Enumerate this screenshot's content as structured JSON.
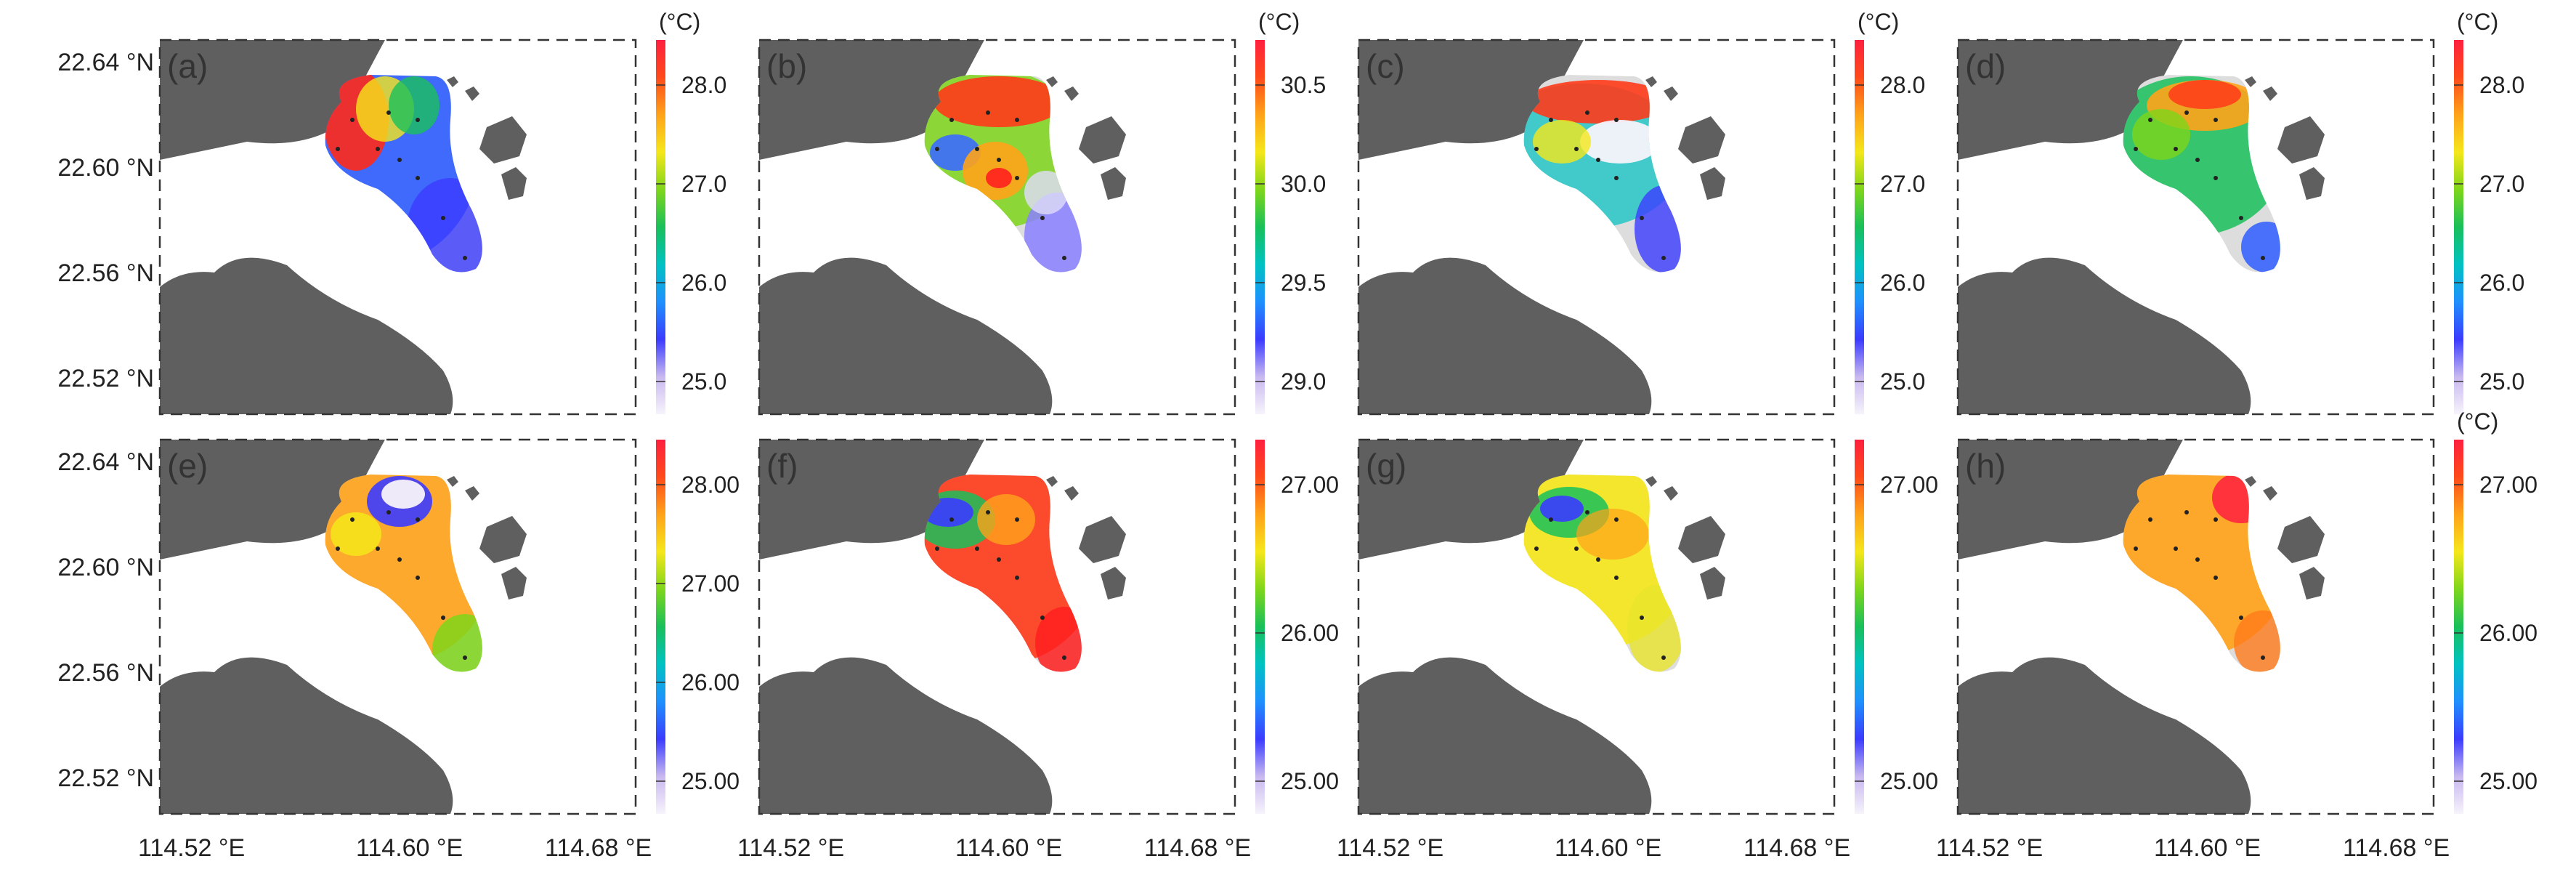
{
  "figure": {
    "axis": {
      "y_labels": [
        "22.64 °N",
        "22.60 °N",
        "22.56 °N",
        "22.52 °N"
      ],
      "x_labels": [
        "114.52 °E",
        "114.60 °E",
        "114.68 °E"
      ]
    },
    "colormap": [
      "#f7f3fb",
      "#c8b8f0",
      "#3b3bff",
      "#1e90ff",
      "#00c2c2",
      "#19c05a",
      "#7ed61a",
      "#f5e71a",
      "#ffa31a",
      "#ff4a1a",
      "#ff1f3f"
    ],
    "panels": [
      {
        "label": "(a)",
        "unit": "(°C)",
        "ticks": [
          "28.0",
          "27.0",
          "26.0",
          "25.0"
        ]
      },
      {
        "label": "(b)",
        "unit": "(°C)",
        "ticks": [
          "30.5",
          "30.0",
          "29.5",
          "29.0"
        ]
      },
      {
        "label": "(c)",
        "unit": "(°C)",
        "ticks": [
          "28.0",
          "27.0",
          "26.0",
          "25.0"
        ]
      },
      {
        "label": "(d)",
        "unit": "(°C)",
        "ticks": [
          "28.0",
          "27.0",
          "26.0",
          "25.0"
        ]
      },
      {
        "label": "(e)",
        "unit": "",
        "ticks": [
          "28.00",
          "27.00",
          "26.00",
          "25.00"
        ]
      },
      {
        "label": "(f)",
        "unit": "",
        "ticks": [
          "27.00",
          "26.00",
          "25.00"
        ]
      },
      {
        "label": "(g)",
        "unit": "",
        "ticks": [
          "27.00",
          "25.00"
        ]
      },
      {
        "label": "(h)",
        "unit": "(°C)",
        "ticks": [
          "27.00",
          "26.00",
          "25.00"
        ]
      }
    ]
  }
}
